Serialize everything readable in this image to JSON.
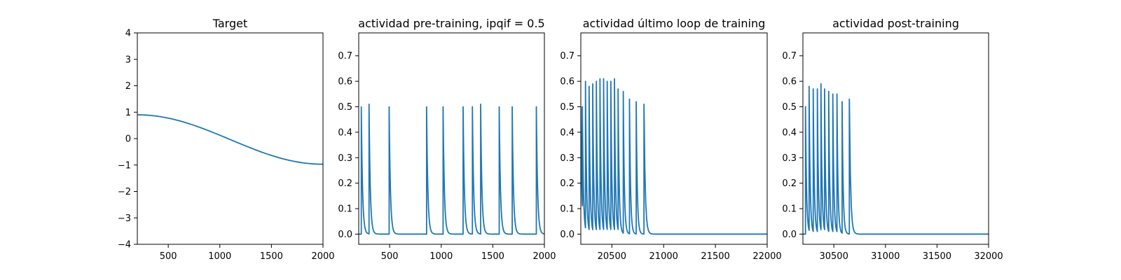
{
  "colors": {
    "series": "#1f77b4",
    "axes": "#000000",
    "background": "#ffffff"
  },
  "chart_data": [
    {
      "type": "line",
      "title": "Target",
      "xlabel": "",
      "ylabel": "",
      "xlim": [
        200,
        2000
      ],
      "ylim": [
        -4,
        4
      ],
      "xticks": [
        500,
        1000,
        1500,
        2000
      ],
      "yticks": [
        -4,
        -3,
        -2,
        -1,
        0,
        1,
        2,
        3,
        4
      ],
      "grid": false,
      "series": [
        {
          "kind": "cosine",
          "x_start": 200,
          "x_end": 2000,
          "x_step": 25,
          "period": 4000,
          "phase": 200,
          "amplitude": 1,
          "value_at_start": 0.9,
          "value_at_end": -0.97
        }
      ]
    },
    {
      "type": "line",
      "title": "actividad pre-training, ipqif = 0.5",
      "xlabel": "",
      "ylabel": "",
      "xlim": [
        200,
        2000
      ],
      "ylim": [
        -0.04,
        0.79
      ],
      "xticks": [
        500,
        1000,
        1500,
        2000
      ],
      "yticks": [
        0.0,
        0.1,
        0.2,
        0.3,
        0.4,
        0.5,
        0.6,
        0.7
      ],
      "grid": false,
      "series": [
        {
          "kind": "spikes",
          "baseline": 0.0,
          "x_start": 200,
          "x_end": 2000,
          "spikes": [
            {
              "x": 225,
              "peak": 0.5,
              "decay": 12,
              "end": 300
            },
            {
              "x": 300,
              "peak": 0.51,
              "decay": 12,
              "end": 495
            },
            {
              "x": 495,
              "peak": 0.5,
              "decay": 12,
              "end": 858
            },
            {
              "x": 858,
              "peak": 0.5,
              "decay": 12,
              "end": 1018
            },
            {
              "x": 1018,
              "peak": 0.5,
              "decay": 12,
              "end": 1212
            },
            {
              "x": 1212,
              "peak": 0.5,
              "decay": 12,
              "end": 1302
            },
            {
              "x": 1302,
              "peak": 0.5,
              "decay": 12,
              "end": 1382
            },
            {
              "x": 1382,
              "peak": 0.51,
              "decay": 12,
              "end": 1562
            },
            {
              "x": 1562,
              "peak": 0.5,
              "decay": 12,
              "end": 1688
            },
            {
              "x": 1688,
              "peak": 0.5,
              "decay": 12,
              "end": 1922
            },
            {
              "x": 1922,
              "peak": 0.5,
              "decay": 12,
              "end": 2000
            }
          ]
        }
      ]
    },
    {
      "type": "line",
      "title": "actividad último loop de training",
      "xlabel": "",
      "ylabel": "",
      "xlim": [
        20200,
        22000
      ],
      "ylim": [
        -0.04,
        0.79
      ],
      "xticks": [
        20500,
        21000,
        21500,
        22000
      ],
      "yticks": [
        0.0,
        0.1,
        0.2,
        0.3,
        0.4,
        0.5,
        0.6,
        0.7
      ],
      "grid": false,
      "series": [
        {
          "kind": "spikes",
          "baseline": 0.0,
          "x_start": 20200,
          "x_end": 22000,
          "spikes": [
            {
              "x": 20200,
              "peak": 0.5,
              "decay": 10,
              "end": 20215
            },
            {
              "x": 20215,
              "peak": 0.5,
              "decay": 10,
              "end": 20245
            },
            {
              "x": 20245,
              "peak": 0.6,
              "decay": 10,
              "end": 20280
            },
            {
              "x": 20280,
              "peak": 0.58,
              "decay": 10,
              "end": 20315
            },
            {
              "x": 20315,
              "peak": 0.59,
              "decay": 10,
              "end": 20350
            },
            {
              "x": 20350,
              "peak": 0.6,
              "decay": 10,
              "end": 20385
            },
            {
              "x": 20385,
              "peak": 0.61,
              "decay": 10,
              "end": 20420
            },
            {
              "x": 20420,
              "peak": 0.61,
              "decay": 10,
              "end": 20455
            },
            {
              "x": 20455,
              "peak": 0.6,
              "decay": 10,
              "end": 20490
            },
            {
              "x": 20490,
              "peak": 0.6,
              "decay": 10,
              "end": 20525
            },
            {
              "x": 20525,
              "peak": 0.61,
              "decay": 10,
              "end": 20560
            },
            {
              "x": 20560,
              "peak": 0.57,
              "decay": 10,
              "end": 20610
            },
            {
              "x": 20610,
              "peak": 0.56,
              "decay": 10,
              "end": 20670
            },
            {
              "x": 20670,
              "peak": 0.53,
              "decay": 10,
              "end": 20735
            },
            {
              "x": 20735,
              "peak": 0.52,
              "decay": 10,
              "end": 20810
            },
            {
              "x": 20810,
              "peak": 0.51,
              "decay": 12,
              "end": 22000
            }
          ]
        }
      ]
    },
    {
      "type": "line",
      "title": "actividad post-training",
      "xlabel": "",
      "ylabel": "",
      "xlim": [
        30200,
        32000
      ],
      "ylim": [
        -0.04,
        0.79
      ],
      "xticks": [
        30500,
        31000,
        31500,
        32000
      ],
      "yticks": [
        0.0,
        0.1,
        0.2,
        0.3,
        0.4,
        0.5,
        0.6,
        0.7
      ],
      "grid": false,
      "series": [
        {
          "kind": "spikes",
          "baseline": 0.0,
          "x_start": 30200,
          "x_end": 32000,
          "spikes": [
            {
              "x": 30225,
              "peak": 0.5,
              "decay": 10,
              "end": 30260
            },
            {
              "x": 30260,
              "peak": 0.58,
              "decay": 10,
              "end": 30300
            },
            {
              "x": 30300,
              "peak": 0.57,
              "decay": 10,
              "end": 30340
            },
            {
              "x": 30340,
              "peak": 0.57,
              "decay": 10,
              "end": 30375
            },
            {
              "x": 30375,
              "peak": 0.59,
              "decay": 10,
              "end": 30410
            },
            {
              "x": 30410,
              "peak": 0.57,
              "decay": 10,
              "end": 30450
            },
            {
              "x": 30450,
              "peak": 0.56,
              "decay": 10,
              "end": 30490
            },
            {
              "x": 30490,
              "peak": 0.55,
              "decay": 10,
              "end": 30530
            },
            {
              "x": 30530,
              "peak": 0.55,
              "decay": 10,
              "end": 30580
            },
            {
              "x": 30580,
              "peak": 0.52,
              "decay": 10,
              "end": 30650
            },
            {
              "x": 30650,
              "peak": 0.53,
              "decay": 12,
              "end": 32000
            }
          ]
        }
      ]
    }
  ]
}
